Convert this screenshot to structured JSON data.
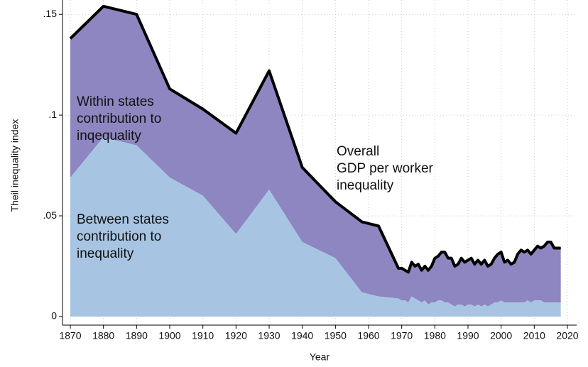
{
  "chart_data": {
    "type": "area",
    "x_label": "Year",
    "y_label": "Theil inequality index",
    "x": [
      1870,
      1880,
      1890,
      1900,
      1910,
      1920,
      1930,
      1940,
      1950,
      1958,
      1963,
      1969,
      1970,
      1971,
      1972,
      1973,
      1974,
      1975,
      1976,
      1977,
      1978,
      1979,
      1980,
      1981,
      1982,
      1983,
      1984,
      1985,
      1986,
      1987,
      1988,
      1989,
      1990,
      1991,
      1992,
      1993,
      1994,
      1995,
      1996,
      1997,
      1998,
      1999,
      2000,
      2001,
      2002,
      2003,
      2004,
      2005,
      2006,
      2007,
      2008,
      2009,
      2010,
      2011,
      2012,
      2013,
      2014,
      2015,
      2016,
      2017,
      2018
    ],
    "series": [
      {
        "label_lines": [
          "Between states",
          "contribution to",
          "inequality"
        ],
        "color": "#a7c5e3",
        "values": [
          0.069,
          0.089,
          0.085,
          0.069,
          0.06,
          0.041,
          0.063,
          0.037,
          0.029,
          0.012,
          0.01,
          0.009,
          0.008,
          0.008,
          0.007,
          0.01,
          0.009,
          0.008,
          0.007,
          0.008,
          0.006,
          0.007,
          0.007,
          0.008,
          0.008,
          0.007,
          0.007,
          0.006,
          0.005,
          0.006,
          0.006,
          0.005,
          0.006,
          0.006,
          0.005,
          0.006,
          0.005,
          0.006,
          0.005,
          0.006,
          0.007,
          0.007,
          0.008,
          0.007,
          0.007,
          0.007,
          0.007,
          0.007,
          0.007,
          0.007,
          0.008,
          0.007,
          0.008,
          0.008,
          0.008,
          0.007,
          0.007,
          0.007,
          0.007,
          0.007,
          0.007
        ]
      },
      {
        "label_lines": [
          "Overall",
          "GDP per worker",
          "inequality"
        ],
        "color": "#000000",
        "values": [
          0.138,
          0.154,
          0.15,
          0.113,
          0.103,
          0.091,
          0.122,
          0.074,
          0.057,
          0.047,
          0.045,
          0.024,
          0.024,
          0.023,
          0.022,
          0.027,
          0.025,
          0.026,
          0.023,
          0.025,
          0.023,
          0.025,
          0.029,
          0.03,
          0.032,
          0.032,
          0.029,
          0.029,
          0.025,
          0.026,
          0.029,
          0.027,
          0.028,
          0.029,
          0.026,
          0.028,
          0.026,
          0.028,
          0.025,
          0.026,
          0.029,
          0.031,
          0.032,
          0.027,
          0.028,
          0.026,
          0.027,
          0.031,
          0.033,
          0.032,
          0.033,
          0.031,
          0.033,
          0.035,
          0.034,
          0.035,
          0.037,
          0.037,
          0.034,
          0.034,
          0.034
        ]
      }
    ],
    "between_band": {
      "label_lines": [
        "Within states",
        "contribution to",
        "inqequality"
      ],
      "color": "#8e86c0"
    },
    "xlim": [
      1870,
      2020
    ],
    "xticks": [
      1870,
      1880,
      1890,
      1900,
      1910,
      1920,
      1930,
      1940,
      1950,
      1960,
      1970,
      1980,
      1990,
      2000,
      2010,
      2020
    ],
    "ylim": [
      0,
      0.155
    ],
    "yticks": [
      0,
      {
        "value": 0.05,
        "label": ".05"
      },
      {
        "value": 0.1,
        "label": ".1"
      },
      {
        "value": 0.15,
        "label": ".15"
      }
    ],
    "grid": true
  }
}
